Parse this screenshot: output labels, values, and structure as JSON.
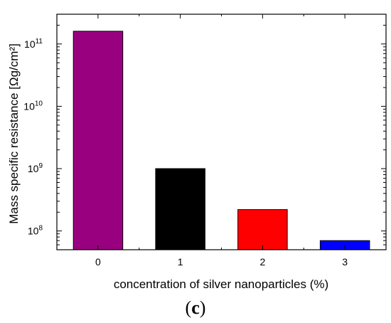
{
  "chart_data": {
    "type": "bar",
    "scale_y": "log",
    "categories": [
      "0",
      "1",
      "2",
      "3"
    ],
    "values": [
      160000000000,
      1000000000,
      220000000,
      70000000
    ],
    "bar_colors": [
      "#990080",
      "#000000",
      "#ff0000",
      "#0000ff"
    ],
    "xlabel": "concentration of silver nanoparticles (%)",
    "ylabel": "Mass specific resistance [Ωg/cm²]",
    "ylim": [
      50000000,
      300000000000
    ],
    "y_ticks": [
      {
        "base": "10",
        "exp": "8",
        "value": 100000000
      },
      {
        "base": "10",
        "exp": "9",
        "value": 1000000000
      },
      {
        "base": "10",
        "exp": "10",
        "value": 10000000000
      },
      {
        "base": "10",
        "exp": "11",
        "value": 100000000000
      }
    ],
    "grid": false,
    "legend": "none",
    "panel_label": {
      "open": "(",
      "letter": "c",
      "close": ")"
    }
  }
}
